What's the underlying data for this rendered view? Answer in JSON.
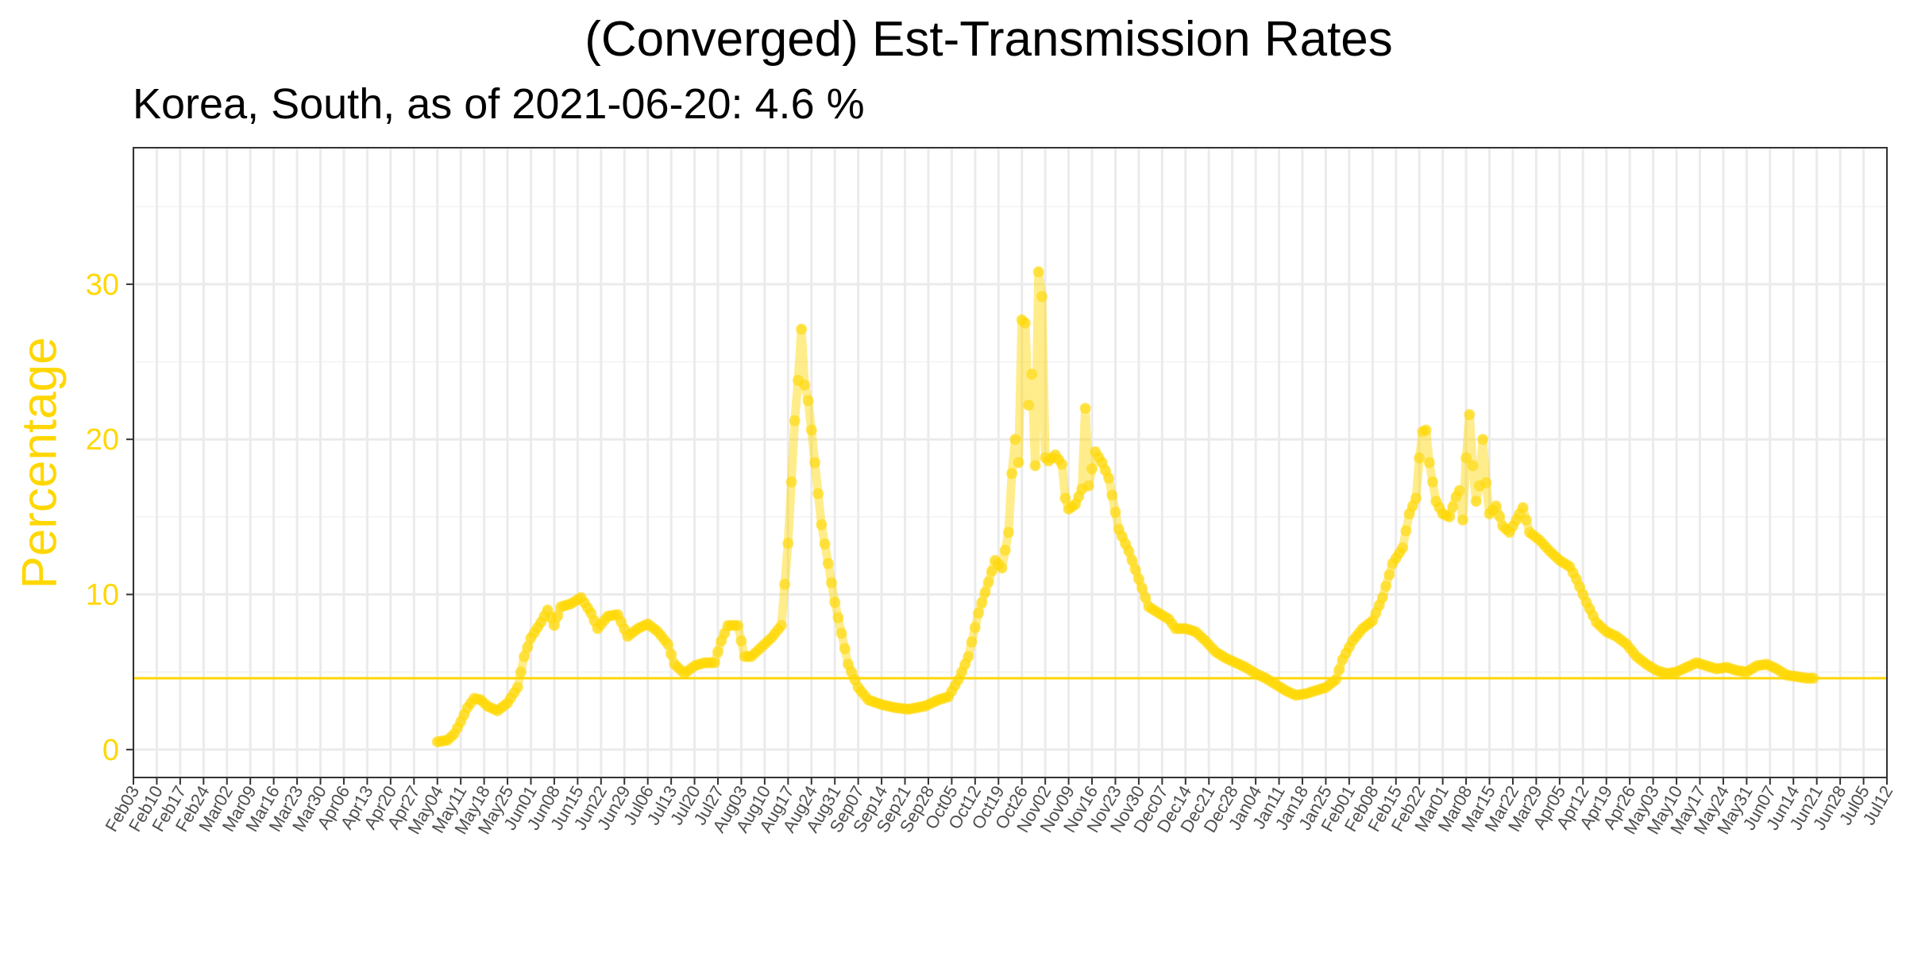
{
  "chart_data": {
    "type": "line",
    "title": "(Converged) Est-Transmission Rates",
    "subtitle": "Korea, South, as of 2021-06-20:  4.6 %",
    "xlabel": "",
    "ylabel": "Percentage",
    "ylim": [
      -1.8,
      38.8
    ],
    "yticks": [
      0,
      10,
      20,
      30
    ],
    "xlim": [
      "2020-02-03",
      "2021-07-12"
    ],
    "xtick_labels": [
      "Feb03",
      "Feb10",
      "Feb17",
      "Feb24",
      "Mar02",
      "Mar09",
      "Mar16",
      "Mar23",
      "Mar30",
      "Apr06",
      "Apr13",
      "Apr20",
      "Apr27",
      "May04",
      "May11",
      "May18",
      "May25",
      "Jun01",
      "Jun08",
      "Jun15",
      "Jun22",
      "Jun29",
      "Jul06",
      "Jul13",
      "Jul20",
      "Jul27",
      "Aug03",
      "Aug10",
      "Aug17",
      "Aug24",
      "Aug31",
      "Sep07",
      "Sep14",
      "Sep21",
      "Sep28",
      "Oct05",
      "Oct12",
      "Oct19",
      "Oct26",
      "Nov02",
      "Nov09",
      "Nov16",
      "Nov23",
      "Nov30",
      "Dec07",
      "Dec14",
      "Dec21",
      "Dec28",
      "Jan04",
      "Jan11",
      "Jan18",
      "Jan25",
      "Feb01",
      "Feb08",
      "Feb15",
      "Feb22",
      "Mar01",
      "Mar08",
      "Mar15",
      "Mar22",
      "Mar29",
      "Apr05",
      "Apr12",
      "Apr19",
      "Apr26",
      "May03",
      "May10",
      "May17",
      "May24",
      "May31",
      "Jun07",
      "Jun14",
      "Jun21",
      "Jun28",
      "Jul05",
      "Jul12"
    ],
    "grid": true,
    "reference_line": 4.6,
    "series_color": "#FFD700",
    "keypoints": [
      [
        "2020-05-04",
        0.5
      ],
      [
        "2020-05-07",
        0.6
      ],
      [
        "2020-05-09",
        1.0
      ],
      [
        "2020-05-11",
        1.8
      ],
      [
        "2020-05-13",
        2.7
      ],
      [
        "2020-05-15",
        3.3
      ],
      [
        "2020-05-17",
        3.2
      ],
      [
        "2020-05-19",
        2.8
      ],
      [
        "2020-05-22",
        2.5
      ],
      [
        "2020-05-25",
        3.0
      ],
      [
        "2020-05-28",
        4.0
      ],
      [
        "2020-05-30",
        6.0
      ],
      [
        "2020-06-01",
        7.2
      ],
      [
        "2020-06-04",
        8.2
      ],
      [
        "2020-06-06",
        9.0
      ],
      [
        "2020-06-08",
        8.0
      ],
      [
        "2020-06-10",
        9.2
      ],
      [
        "2020-06-13",
        9.4
      ],
      [
        "2020-06-16",
        9.8
      ],
      [
        "2020-06-19",
        8.8
      ],
      [
        "2020-06-21",
        7.8
      ],
      [
        "2020-06-24",
        8.6
      ],
      [
        "2020-06-27",
        8.7
      ],
      [
        "2020-06-30",
        7.3
      ],
      [
        "2020-07-03",
        7.8
      ],
      [
        "2020-07-06",
        8.1
      ],
      [
        "2020-07-09",
        7.6
      ],
      [
        "2020-07-12",
        6.8
      ],
      [
        "2020-07-14",
        5.5
      ],
      [
        "2020-07-17",
        4.9
      ],
      [
        "2020-07-20",
        5.4
      ],
      [
        "2020-07-23",
        5.6
      ],
      [
        "2020-07-26",
        5.6
      ],
      [
        "2020-07-28",
        7.0
      ],
      [
        "2020-07-30",
        8.0
      ],
      [
        "2020-08-02",
        8.0
      ],
      [
        "2020-08-04",
        6.0
      ],
      [
        "2020-08-06",
        6.0
      ],
      [
        "2020-08-09",
        6.6
      ],
      [
        "2020-08-12",
        7.2
      ],
      [
        "2020-08-15",
        8.0
      ],
      [
        "2020-08-17",
        13.3
      ],
      [
        "2020-08-19",
        21.2
      ],
      [
        "2020-08-20",
        23.8
      ],
      [
        "2020-08-21",
        27.1
      ],
      [
        "2020-08-22",
        23.5
      ],
      [
        "2020-08-23",
        22.5
      ],
      [
        "2020-08-24",
        20.6
      ],
      [
        "2020-08-25",
        18.5
      ],
      [
        "2020-08-27",
        14.5
      ],
      [
        "2020-08-29",
        12.0
      ],
      [
        "2020-08-31",
        9.5
      ],
      [
        "2020-09-02",
        7.5
      ],
      [
        "2020-09-04",
        5.5
      ],
      [
        "2020-09-07",
        4.0
      ],
      [
        "2020-09-10",
        3.2
      ],
      [
        "2020-09-14",
        2.9
      ],
      [
        "2020-09-18",
        2.7
      ],
      [
        "2020-09-22",
        2.6
      ],
      [
        "2020-09-27",
        2.8
      ],
      [
        "2020-10-01",
        3.2
      ],
      [
        "2020-10-04",
        3.4
      ],
      [
        "2020-10-07",
        4.5
      ],
      [
        "2020-10-10",
        6.0
      ],
      [
        "2020-10-13",
        8.8
      ],
      [
        "2020-10-16",
        10.8
      ],
      [
        "2020-10-18",
        12.2
      ],
      [
        "2020-10-20",
        11.7
      ],
      [
        "2020-10-22",
        14.0
      ],
      [
        "2020-10-23",
        17.8
      ],
      [
        "2020-10-24",
        20.0
      ],
      [
        "2020-10-25",
        18.5
      ],
      [
        "2020-10-26",
        27.7
      ],
      [
        "2020-10-27",
        27.5
      ],
      [
        "2020-10-28",
        22.2
      ],
      [
        "2020-10-29",
        24.2
      ],
      [
        "2020-10-30",
        18.3
      ],
      [
        "2020-10-31",
        30.8
      ],
      [
        "2020-11-01",
        29.2
      ],
      [
        "2020-11-02",
        18.8
      ],
      [
        "2020-11-03",
        18.6
      ],
      [
        "2020-11-05",
        19.0
      ],
      [
        "2020-11-07",
        18.4
      ],
      [
        "2020-11-08",
        16.2
      ],
      [
        "2020-11-09",
        15.5
      ],
      [
        "2020-11-11",
        15.8
      ],
      [
        "2020-11-13",
        16.8
      ],
      [
        "2020-11-14",
        22.0
      ],
      [
        "2020-11-15",
        17.0
      ],
      [
        "2020-11-17",
        19.2
      ],
      [
        "2020-11-19",
        18.5
      ],
      [
        "2020-11-21",
        17.5
      ],
      [
        "2020-11-24",
        14.2
      ],
      [
        "2020-11-27",
        12.8
      ],
      [
        "2020-11-30",
        11.0
      ],
      [
        "2020-12-03",
        9.2
      ],
      [
        "2020-12-06",
        8.8
      ],
      [
        "2020-12-09",
        8.4
      ],
      [
        "2020-12-11",
        7.8
      ],
      [
        "2020-12-14",
        7.8
      ],
      [
        "2020-12-17",
        7.6
      ],
      [
        "2020-12-20",
        7.0
      ],
      [
        "2020-12-23",
        6.3
      ],
      [
        "2020-12-26",
        5.9
      ],
      [
        "2020-12-29",
        5.6
      ],
      [
        "2021-01-01",
        5.3
      ],
      [
        "2021-01-04",
        4.9
      ],
      [
        "2021-01-07",
        4.6
      ],
      [
        "2021-01-10",
        4.2
      ],
      [
        "2021-01-13",
        3.8
      ],
      [
        "2021-01-16",
        3.5
      ],
      [
        "2021-01-19",
        3.6
      ],
      [
        "2021-01-22",
        3.8
      ],
      [
        "2021-01-25",
        4.0
      ],
      [
        "2021-01-28",
        4.5
      ],
      [
        "2021-01-30",
        5.8
      ],
      [
        "2021-02-02",
        7.0
      ],
      [
        "2021-02-05",
        7.8
      ],
      [
        "2021-02-08",
        8.3
      ],
      [
        "2021-02-11",
        9.8
      ],
      [
        "2021-02-14",
        12.0
      ],
      [
        "2021-02-17",
        13.0
      ],
      [
        "2021-02-19",
        15.2
      ],
      [
        "2021-02-21",
        16.2
      ],
      [
        "2021-02-22",
        18.8
      ],
      [
        "2021-02-23",
        20.5
      ],
      [
        "2021-02-24",
        20.6
      ],
      [
        "2021-02-25",
        18.5
      ],
      [
        "2021-02-27",
        16.0
      ],
      [
        "2021-03-01",
        15.2
      ],
      [
        "2021-03-03",
        15.0
      ],
      [
        "2021-03-05",
        16.3
      ],
      [
        "2021-03-06",
        16.7
      ],
      [
        "2021-03-07",
        14.8
      ],
      [
        "2021-03-08",
        18.8
      ],
      [
        "2021-03-09",
        21.6
      ],
      [
        "2021-03-10",
        18.3
      ],
      [
        "2021-03-11",
        16.0
      ],
      [
        "2021-03-12",
        17.0
      ],
      [
        "2021-03-13",
        20.0
      ],
      [
        "2021-03-14",
        17.2
      ],
      [
        "2021-03-15",
        15.2
      ],
      [
        "2021-03-17",
        15.7
      ],
      [
        "2021-03-19",
        14.4
      ],
      [
        "2021-03-21",
        14.0
      ],
      [
        "2021-03-23",
        14.8
      ],
      [
        "2021-03-25",
        15.6
      ],
      [
        "2021-03-27",
        14.0
      ],
      [
        "2021-03-30",
        13.5
      ],
      [
        "2021-04-02",
        12.8
      ],
      [
        "2021-04-05",
        12.2
      ],
      [
        "2021-04-08",
        11.8
      ],
      [
        "2021-04-10",
        11.0
      ],
      [
        "2021-04-13",
        9.5
      ],
      [
        "2021-04-16",
        8.2
      ],
      [
        "2021-04-19",
        7.6
      ],
      [
        "2021-04-22",
        7.3
      ],
      [
        "2021-04-25",
        6.8
      ],
      [
        "2021-04-28",
        6.0
      ],
      [
        "2021-05-01",
        5.5
      ],
      [
        "2021-05-04",
        5.1
      ],
      [
        "2021-05-07",
        4.9
      ],
      [
        "2021-05-10",
        5.0
      ],
      [
        "2021-05-13",
        5.3
      ],
      [
        "2021-05-16",
        5.6
      ],
      [
        "2021-05-19",
        5.4
      ],
      [
        "2021-05-22",
        5.2
      ],
      [
        "2021-05-25",
        5.3
      ],
      [
        "2021-05-28",
        5.1
      ],
      [
        "2021-05-31",
        5.0
      ],
      [
        "2021-06-03",
        5.4
      ],
      [
        "2021-06-06",
        5.5
      ],
      [
        "2021-06-09",
        5.2
      ],
      [
        "2021-06-12",
        4.8
      ],
      [
        "2021-06-15",
        4.7
      ],
      [
        "2021-06-18",
        4.6
      ],
      [
        "2021-06-20",
        4.6
      ]
    ]
  }
}
